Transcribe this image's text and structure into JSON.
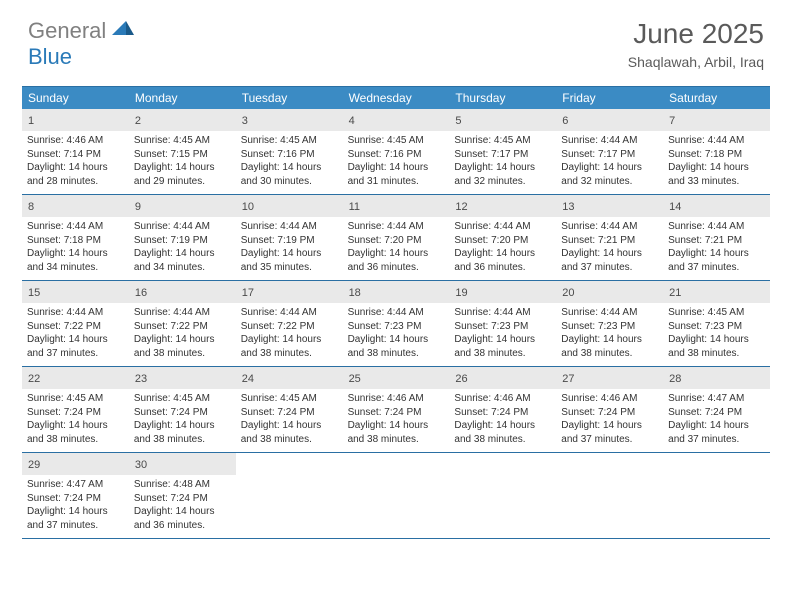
{
  "logo": {
    "text_gray": "General",
    "text_blue": "Blue"
  },
  "title": "June 2025",
  "subtitle": "Shaqlawah, Arbil, Iraq",
  "colors": {
    "header_bg": "#3b8bc4",
    "daynum_bg": "#e9e9e9",
    "border": "#2a6fa3",
    "title_color": "#5a5a5a",
    "logo_gray": "#808080",
    "logo_blue": "#2a7ab8"
  },
  "weekdays": [
    "Sunday",
    "Monday",
    "Tuesday",
    "Wednesday",
    "Thursday",
    "Friday",
    "Saturday"
  ],
  "weeks": [
    [
      {
        "num": "1",
        "sunrise": "4:46 AM",
        "sunset": "7:14 PM",
        "daylight": "14 hours and 28 minutes."
      },
      {
        "num": "2",
        "sunrise": "4:45 AM",
        "sunset": "7:15 PM",
        "daylight": "14 hours and 29 minutes."
      },
      {
        "num": "3",
        "sunrise": "4:45 AM",
        "sunset": "7:16 PM",
        "daylight": "14 hours and 30 minutes."
      },
      {
        "num": "4",
        "sunrise": "4:45 AM",
        "sunset": "7:16 PM",
        "daylight": "14 hours and 31 minutes."
      },
      {
        "num": "5",
        "sunrise": "4:45 AM",
        "sunset": "7:17 PM",
        "daylight": "14 hours and 32 minutes."
      },
      {
        "num": "6",
        "sunrise": "4:44 AM",
        "sunset": "7:17 PM",
        "daylight": "14 hours and 32 minutes."
      },
      {
        "num": "7",
        "sunrise": "4:44 AM",
        "sunset": "7:18 PM",
        "daylight": "14 hours and 33 minutes."
      }
    ],
    [
      {
        "num": "8",
        "sunrise": "4:44 AM",
        "sunset": "7:18 PM",
        "daylight": "14 hours and 34 minutes."
      },
      {
        "num": "9",
        "sunrise": "4:44 AM",
        "sunset": "7:19 PM",
        "daylight": "14 hours and 34 minutes."
      },
      {
        "num": "10",
        "sunrise": "4:44 AM",
        "sunset": "7:19 PM",
        "daylight": "14 hours and 35 minutes."
      },
      {
        "num": "11",
        "sunrise": "4:44 AM",
        "sunset": "7:20 PM",
        "daylight": "14 hours and 36 minutes."
      },
      {
        "num": "12",
        "sunrise": "4:44 AM",
        "sunset": "7:20 PM",
        "daylight": "14 hours and 36 minutes."
      },
      {
        "num": "13",
        "sunrise": "4:44 AM",
        "sunset": "7:21 PM",
        "daylight": "14 hours and 37 minutes."
      },
      {
        "num": "14",
        "sunrise": "4:44 AM",
        "sunset": "7:21 PM",
        "daylight": "14 hours and 37 minutes."
      }
    ],
    [
      {
        "num": "15",
        "sunrise": "4:44 AM",
        "sunset": "7:22 PM",
        "daylight": "14 hours and 37 minutes."
      },
      {
        "num": "16",
        "sunrise": "4:44 AM",
        "sunset": "7:22 PM",
        "daylight": "14 hours and 38 minutes."
      },
      {
        "num": "17",
        "sunrise": "4:44 AM",
        "sunset": "7:22 PM",
        "daylight": "14 hours and 38 minutes."
      },
      {
        "num": "18",
        "sunrise": "4:44 AM",
        "sunset": "7:23 PM",
        "daylight": "14 hours and 38 minutes."
      },
      {
        "num": "19",
        "sunrise": "4:44 AM",
        "sunset": "7:23 PM",
        "daylight": "14 hours and 38 minutes."
      },
      {
        "num": "20",
        "sunrise": "4:44 AM",
        "sunset": "7:23 PM",
        "daylight": "14 hours and 38 minutes."
      },
      {
        "num": "21",
        "sunrise": "4:45 AM",
        "sunset": "7:23 PM",
        "daylight": "14 hours and 38 minutes."
      }
    ],
    [
      {
        "num": "22",
        "sunrise": "4:45 AM",
        "sunset": "7:24 PM",
        "daylight": "14 hours and 38 minutes."
      },
      {
        "num": "23",
        "sunrise": "4:45 AM",
        "sunset": "7:24 PM",
        "daylight": "14 hours and 38 minutes."
      },
      {
        "num": "24",
        "sunrise": "4:45 AM",
        "sunset": "7:24 PM",
        "daylight": "14 hours and 38 minutes."
      },
      {
        "num": "25",
        "sunrise": "4:46 AM",
        "sunset": "7:24 PM",
        "daylight": "14 hours and 38 minutes."
      },
      {
        "num": "26",
        "sunrise": "4:46 AM",
        "sunset": "7:24 PM",
        "daylight": "14 hours and 38 minutes."
      },
      {
        "num": "27",
        "sunrise": "4:46 AM",
        "sunset": "7:24 PM",
        "daylight": "14 hours and 37 minutes."
      },
      {
        "num": "28",
        "sunrise": "4:47 AM",
        "sunset": "7:24 PM",
        "daylight": "14 hours and 37 minutes."
      }
    ],
    [
      {
        "num": "29",
        "sunrise": "4:47 AM",
        "sunset": "7:24 PM",
        "daylight": "14 hours and 37 minutes."
      },
      {
        "num": "30",
        "sunrise": "4:48 AM",
        "sunset": "7:24 PM",
        "daylight": "14 hours and 36 minutes."
      },
      null,
      null,
      null,
      null,
      null
    ]
  ],
  "labels": {
    "sunrise_prefix": "Sunrise: ",
    "sunset_prefix": "Sunset: ",
    "daylight_prefix": "Daylight: "
  }
}
